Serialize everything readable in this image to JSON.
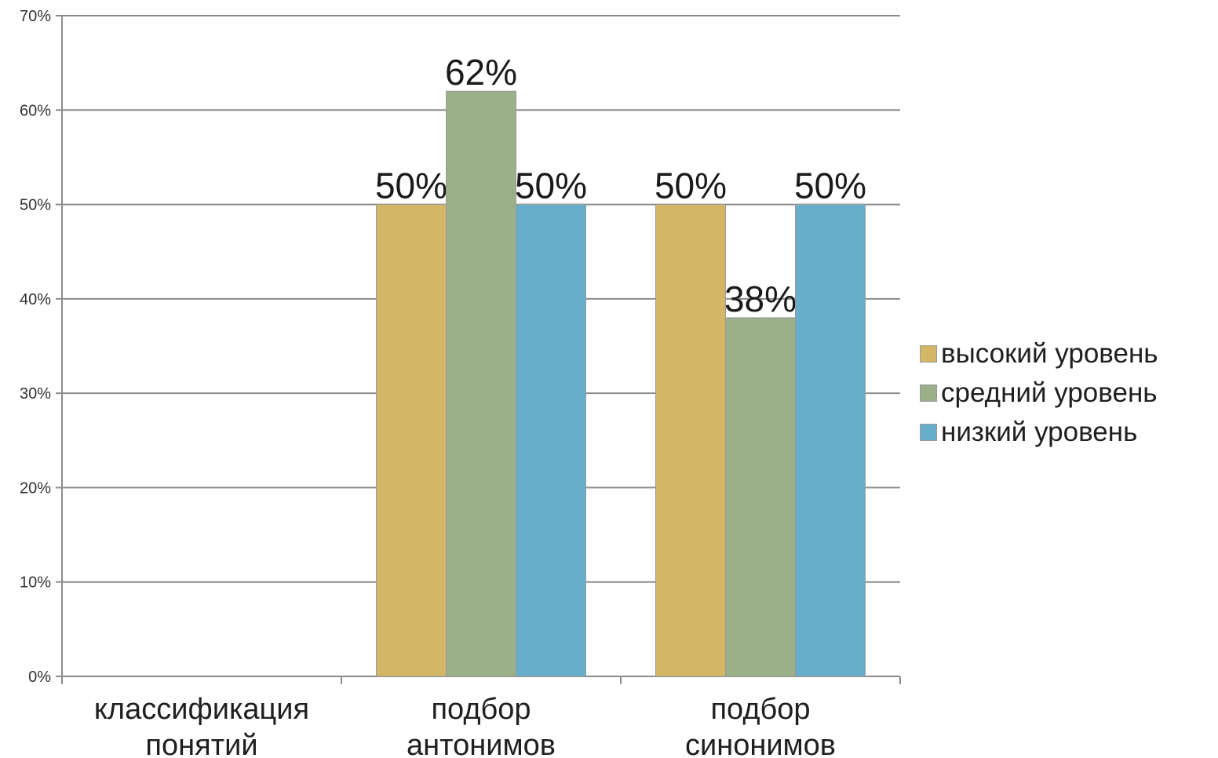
{
  "chart_data": {
    "type": "bar",
    "categories": [
      "классификация понятий",
      "подбор антонимов",
      "подбор синонимов"
    ],
    "category_lines": [
      [
        "классификация",
        "понятий"
      ],
      [
        "подбор",
        "антонимов"
      ],
      [
        "подбор",
        "синонимов"
      ]
    ],
    "series": [
      {
        "name": "высокий уровень",
        "color": "#d4b766",
        "values": [
          null,
          50,
          50
        ],
        "labels": [
          null,
          "50%",
          "50%"
        ]
      },
      {
        "name": "средний уровень",
        "color": "#9bb088",
        "values": [
          null,
          62,
          38
        ],
        "labels": [
          null,
          "62%",
          "38%"
        ]
      },
      {
        "name": "низкий уровень",
        "color": "#66aecb",
        "values": [
          null,
          50,
          50
        ],
        "labels": [
          null,
          "50%",
          "50%"
        ]
      }
    ],
    "ylim": [
      0,
      70
    ],
    "yticks": [
      0,
      10,
      20,
      30,
      40,
      50,
      60,
      70
    ],
    "ytick_labels": [
      "0%",
      "10%",
      "20%",
      "30%",
      "40%",
      "50%",
      "60%",
      "70%"
    ],
    "grid": true,
    "legend_position": "right",
    "title": "",
    "xlabel": "",
    "ylabel": ""
  }
}
